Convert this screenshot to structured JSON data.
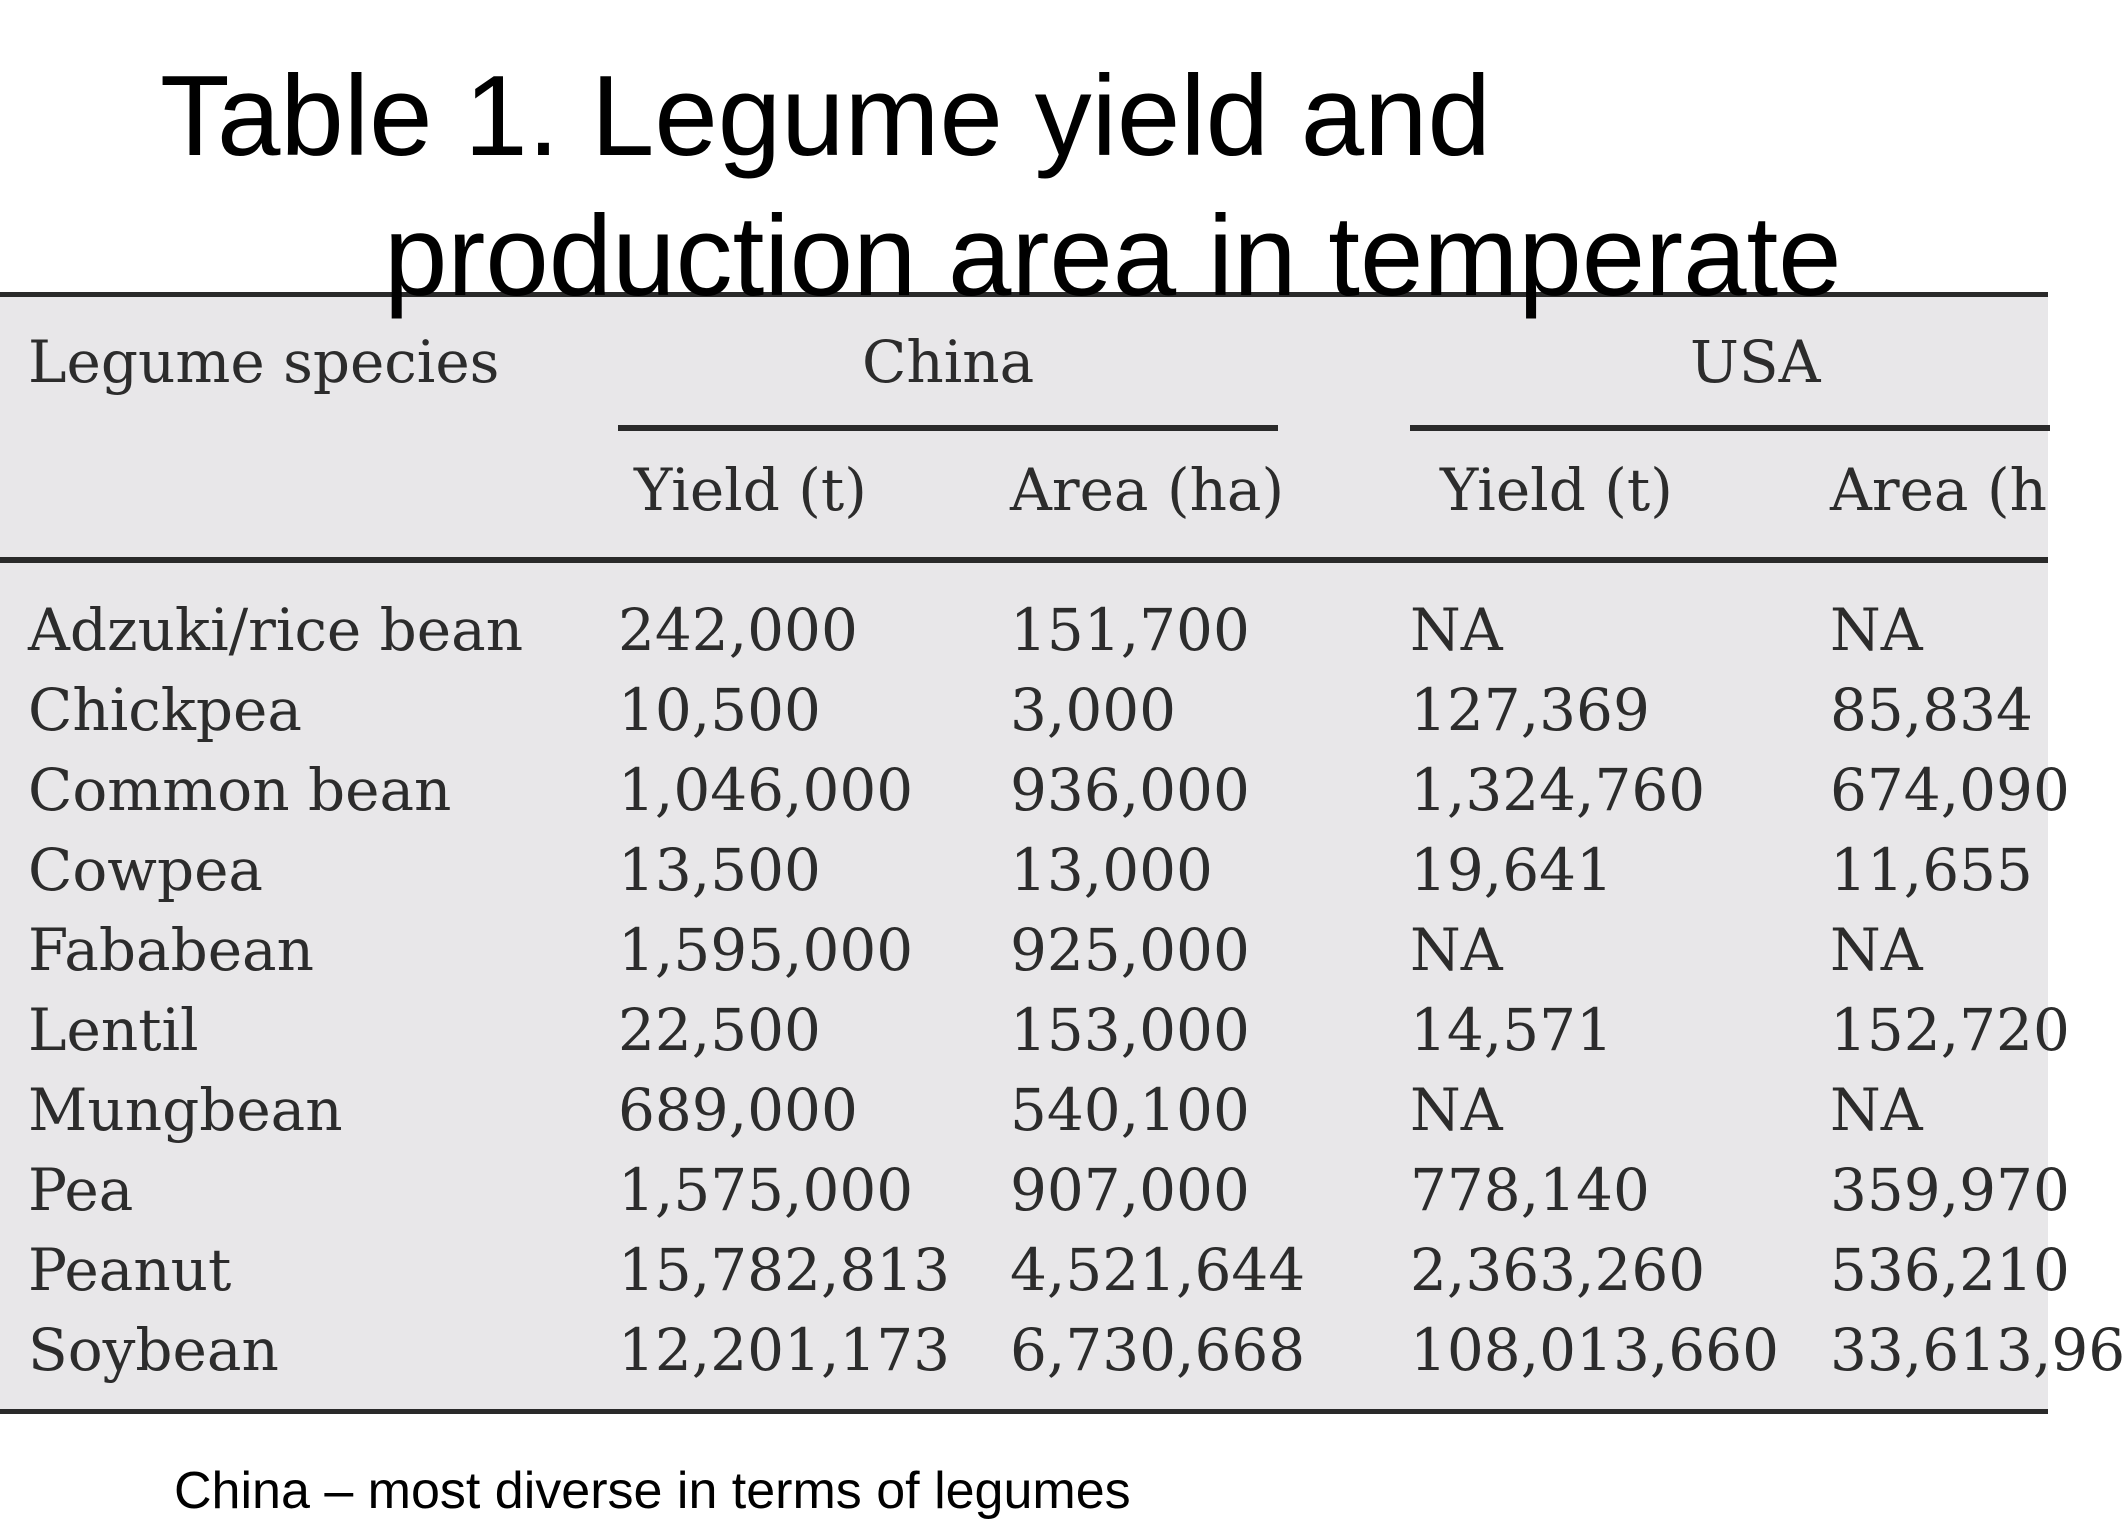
{
  "title": {
    "line1": "Table 1. Legume yield and",
    "line2": "production  area in temperate"
  },
  "table": {
    "header": {
      "species": "Legume species",
      "group1": "China",
      "group2": "USA",
      "sub": [
        "Yield (t)",
        "Area (ha)",
        "Yield (t)",
        "Area (h"
      ]
    },
    "rows": [
      [
        "Adzuki/rice bean",
        "242,000",
        "151,700",
        "NA",
        "NA"
      ],
      [
        "Chickpea",
        "10,500",
        "3,000",
        "127,369",
        "85,834"
      ],
      [
        "Common bean",
        "1,046,000",
        "936,000",
        "1,324,760",
        "674,090"
      ],
      [
        "Cowpea",
        "13,500",
        "13,000",
        "19,641",
        "11,655"
      ],
      [
        "Fababean",
        "1,595,000",
        "925,000",
        "NA",
        "NA"
      ],
      [
        "Lentil",
        "22,500",
        "153,000",
        "14,571",
        "152,720"
      ],
      [
        "Mungbean",
        "689,000",
        "540,100",
        "NA",
        "NA"
      ],
      [
        "Pea",
        "1,575,000",
        "907,000",
        "778,140",
        "359,970"
      ],
      [
        "Peanut",
        "15,782,813",
        "4,521,644",
        "2,363,260",
        "536,210"
      ],
      [
        "Soybean",
        "12,201,173",
        "6,730,668",
        "108,013,660",
        "33,613,96"
      ]
    ]
  },
  "caption": "China – most diverse in terms of legumes"
}
